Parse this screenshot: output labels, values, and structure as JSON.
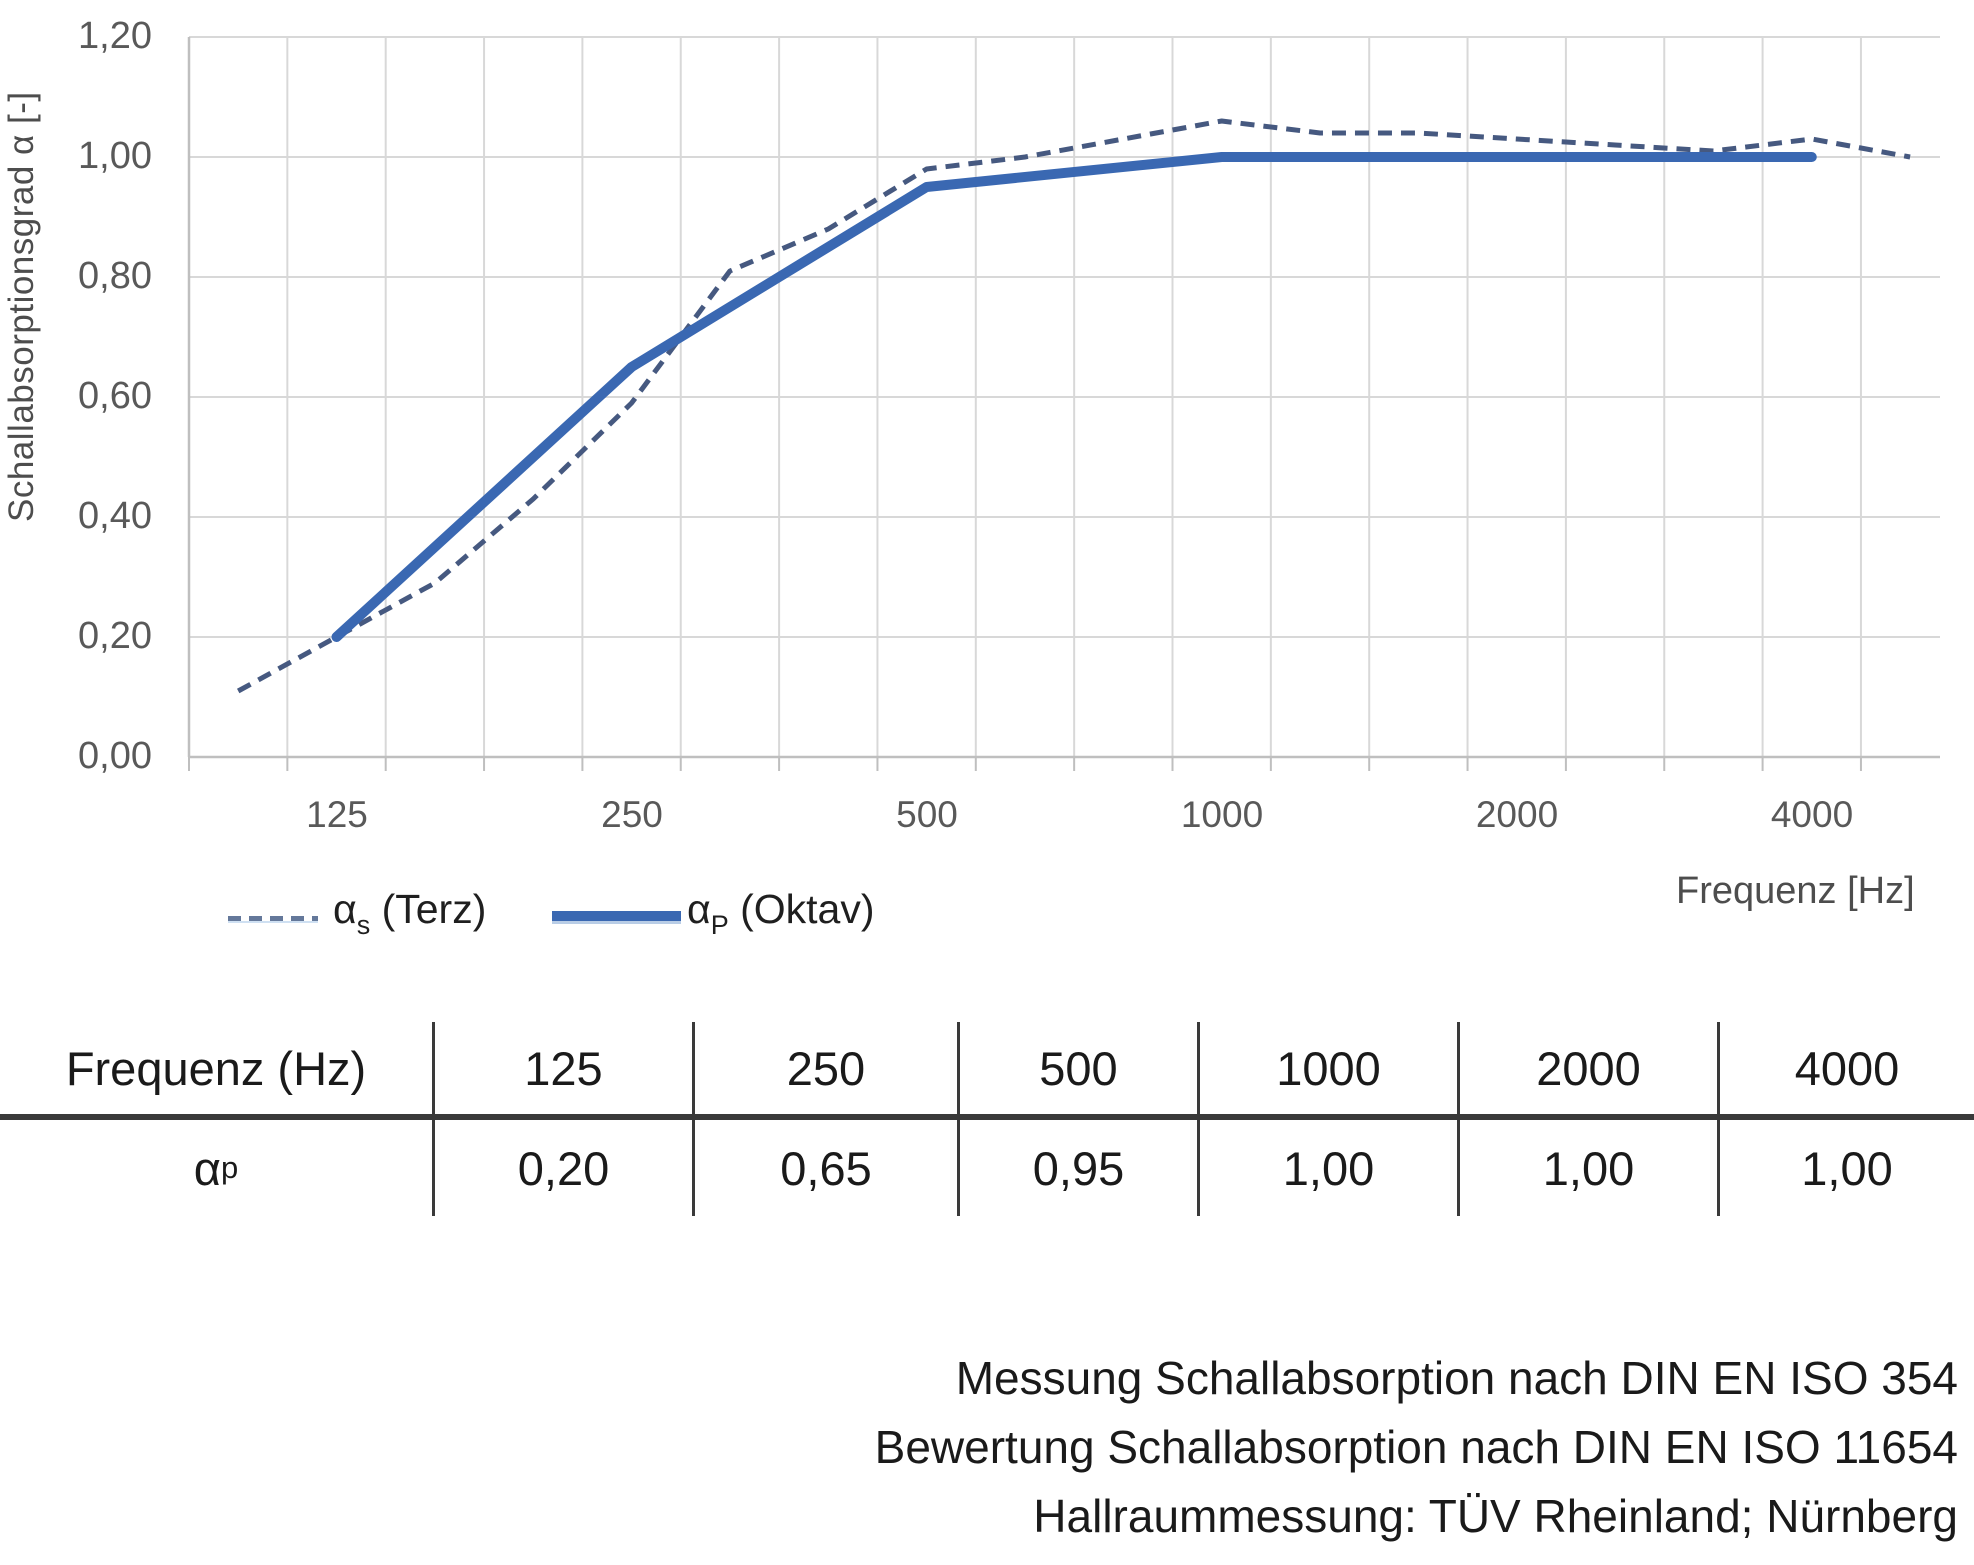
{
  "chart_data": {
    "type": "line",
    "title": "",
    "xlabel": "Frequenz [Hz]",
    "ylabel": "Schallabsorptionsgrad α [-]",
    "ylim": [
      0,
      1.2
    ],
    "grid": true,
    "legend_position": "bottom-left",
    "y_ticks": [
      "0,00",
      "0,20",
      "0,40",
      "0,60",
      "0,80",
      "1,00",
      "1,20"
    ],
    "x_ticks": [
      "125",
      "250",
      "500",
      "1000",
      "2000",
      "4000"
    ],
    "categories": [
      100,
      125,
      160,
      200,
      250,
      315,
      400,
      500,
      630,
      800,
      1000,
      1250,
      1600,
      2000,
      2500,
      3150,
      4000,
      5000
    ],
    "series": [
      {
        "name": "αs (Terz)",
        "style": "dashed",
        "color": "#46598080",
        "stroke": "#465980",
        "x": [
          100,
          125,
          160,
          200,
          250,
          315,
          400,
          500,
          630,
          800,
          1000,
          1250,
          1600,
          2000,
          2500,
          3150,
          4000,
          5000
        ],
        "values": [
          0.11,
          0.2,
          0.29,
          0.43,
          0.59,
          0.81,
          0.88,
          0.98,
          1.0,
          1.03,
          1.06,
          1.04,
          1.04,
          1.03,
          1.02,
          1.01,
          1.03,
          1.0
        ]
      },
      {
        "name": "αP (Oktav)",
        "style": "solid",
        "color": "#3a68b2",
        "stroke": "#3a68b2",
        "x": [
          125,
          250,
          500,
          1000,
          2000,
          4000
        ],
        "values": [
          0.2,
          0.65,
          0.95,
          1.0,
          1.0,
          1.0
        ]
      }
    ]
  },
  "axis": {
    "x_title": "Frequenz [Hz]",
    "y_title": "Schallabsorptionsgrad α [-]"
  },
  "legend": {
    "terz": {
      "symbol": "α",
      "sub": "s",
      "label": " (Terz)"
    },
    "oktav": {
      "symbol": "α",
      "sub": "P",
      "label": " (Oktav)"
    }
  },
  "table": {
    "header_label": "Frequenz (Hz)",
    "headers": [
      "125",
      "250",
      "500",
      "1000",
      "2000",
      "4000"
    ],
    "row_symbol": "α",
    "row_sub": "p",
    "values": [
      "0,20",
      "0,65",
      "0,95",
      "1,00",
      "1,00",
      "1,00"
    ]
  },
  "footer": {
    "line1": "Messung Schallabsorption nach DIN EN ISO 354",
    "line2": "Bewertung Schallabsorption nach DIN EN ISO 11654",
    "line3": "Hallraummessung: TÜV Rheinland; Nürnberg"
  }
}
